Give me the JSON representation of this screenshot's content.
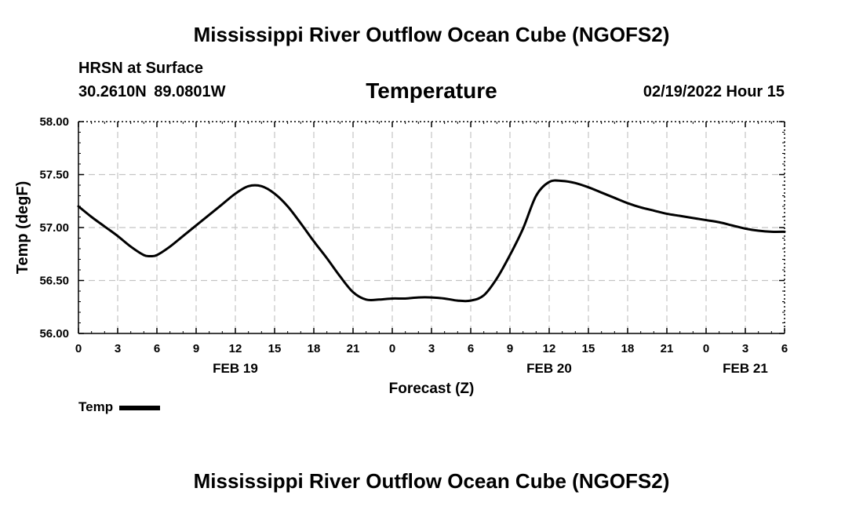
{
  "header": {
    "title": "Mississippi River Outflow Ocean Cube (NGOFS2)",
    "station": "HRSN at Surface",
    "coords": "30.2610N  89.0801W",
    "parameter": "Temperature",
    "datetime": "02/19/2022 Hour 15"
  },
  "footer": {
    "title": "Mississippi River Outflow Ocean Cube (NGOFS2)"
  },
  "legend": {
    "label": "Temp"
  },
  "chart_data": {
    "type": "line",
    "title": "Temperature",
    "xlabel": "Forecast (Z)",
    "ylabel": "Temp (degF)",
    "xlim": [
      0,
      54
    ],
    "ylim": [
      56.0,
      58.0
    ],
    "yticks": [
      56.0,
      56.5,
      57.0,
      57.5,
      58.0
    ],
    "ytick_labels": [
      "56.00",
      "56.50",
      "57.00",
      "57.50",
      "58.00"
    ],
    "xticks": [
      0,
      3,
      6,
      9,
      12,
      15,
      18,
      21,
      24,
      27,
      30,
      33,
      36,
      39,
      42,
      45,
      48,
      51,
      54
    ],
    "xtick_labels": [
      "0",
      "3",
      "6",
      "9",
      "12",
      "15",
      "18",
      "21",
      "0",
      "3",
      "6",
      "9",
      "12",
      "15",
      "18",
      "21",
      "0",
      "3",
      "6"
    ],
    "date_labels": [
      {
        "x": 12,
        "label": "FEB 19"
      },
      {
        "x": 36,
        "label": "FEB 20"
      },
      {
        "x": 51,
        "label": "FEB 21"
      }
    ],
    "grid": true,
    "series": [
      {
        "name": "Temp",
        "x": [
          0,
          1,
          2,
          3,
          4,
          5,
          5.5,
          6,
          7,
          8,
          9,
          10,
          11,
          12,
          13,
          14,
          15,
          16,
          17,
          18,
          19,
          20,
          21,
          22,
          23,
          24,
          25,
          26,
          27,
          28,
          29,
          30,
          31,
          32,
          33,
          34,
          35,
          36,
          37,
          38,
          39,
          40,
          41,
          42,
          43,
          44,
          45,
          46,
          47,
          48,
          49,
          50,
          51,
          52,
          53,
          54
        ],
        "y": [
          57.2,
          57.1,
          57.01,
          56.92,
          56.82,
          56.74,
          56.73,
          56.74,
          56.82,
          56.92,
          57.02,
          57.12,
          57.22,
          57.32,
          57.39,
          57.39,
          57.32,
          57.2,
          57.04,
          56.87,
          56.71,
          56.54,
          56.39,
          56.32,
          56.32,
          56.33,
          56.33,
          56.34,
          56.34,
          56.33,
          56.31,
          56.31,
          56.36,
          56.52,
          56.74,
          56.99,
          57.3,
          57.43,
          57.44,
          57.42,
          57.38,
          57.33,
          57.28,
          57.23,
          57.19,
          57.16,
          57.13,
          57.11,
          57.09,
          57.07,
          57.05,
          57.02,
          56.99,
          56.97,
          56.96,
          56.96
        ]
      }
    ]
  }
}
